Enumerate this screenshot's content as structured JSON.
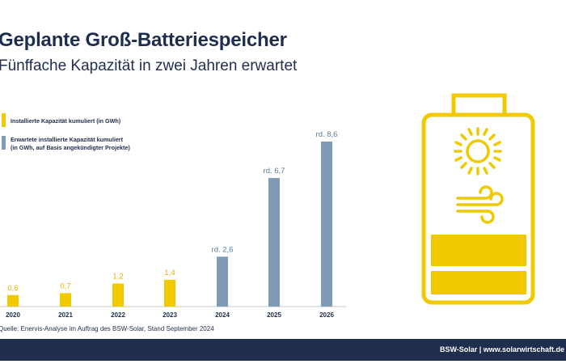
{
  "title": "Geplante Groß-Batteriespeicher",
  "subtitle": "Fünffache Kapazität in zwei Jahren erwartet",
  "source": "Quelle: Enervis-Analyse im Auftrag des BSW-Solar, Stand September 2024",
  "footer": "BSW-Solar | www.solarwirtschaft.de",
  "colors": {
    "installed": "#f0c900",
    "expected": "#7f9bb6",
    "navy": "#1f2d4e",
    "icon": "#f0c900"
  },
  "icon": {
    "name": "battery-sun-wind-icon"
  },
  "chart_data": {
    "type": "bar",
    "categories": [
      "2020",
      "2021",
      "2022",
      "2023",
      "2024",
      "2025",
      "2026"
    ],
    "series": [
      {
        "name": "Installierte Kapazität kumuliert (in GWh)",
        "color": "#f0c900",
        "values": [
          0.6,
          0.7,
          1.2,
          1.4,
          null,
          null,
          null
        ]
      },
      {
        "name": "Erwartete installierte Kapazität kumuliert (in GWh, auf Basis angekündigter Projekte)",
        "color": "#7f9bb6",
        "values": [
          null,
          null,
          null,
          null,
          2.6,
          6.7,
          8.6
        ]
      }
    ],
    "data_labels": [
      "0,6",
      "0,7",
      "1,2",
      "1,4",
      "rd. 2,6",
      "rd. 6,7",
      "rd. 8,6"
    ],
    "legend": {
      "installed": "Installierte Kapazität kumuliert (in GWh)",
      "expected_line1": "Erwartete installierte Kapazität kumuliert",
      "expected_line2": "(in GWh, auf Basis angekündigter Projekte)"
    },
    "ylim": [
      0,
      9
    ],
    "grid": false,
    "legend_position": "top-left"
  }
}
